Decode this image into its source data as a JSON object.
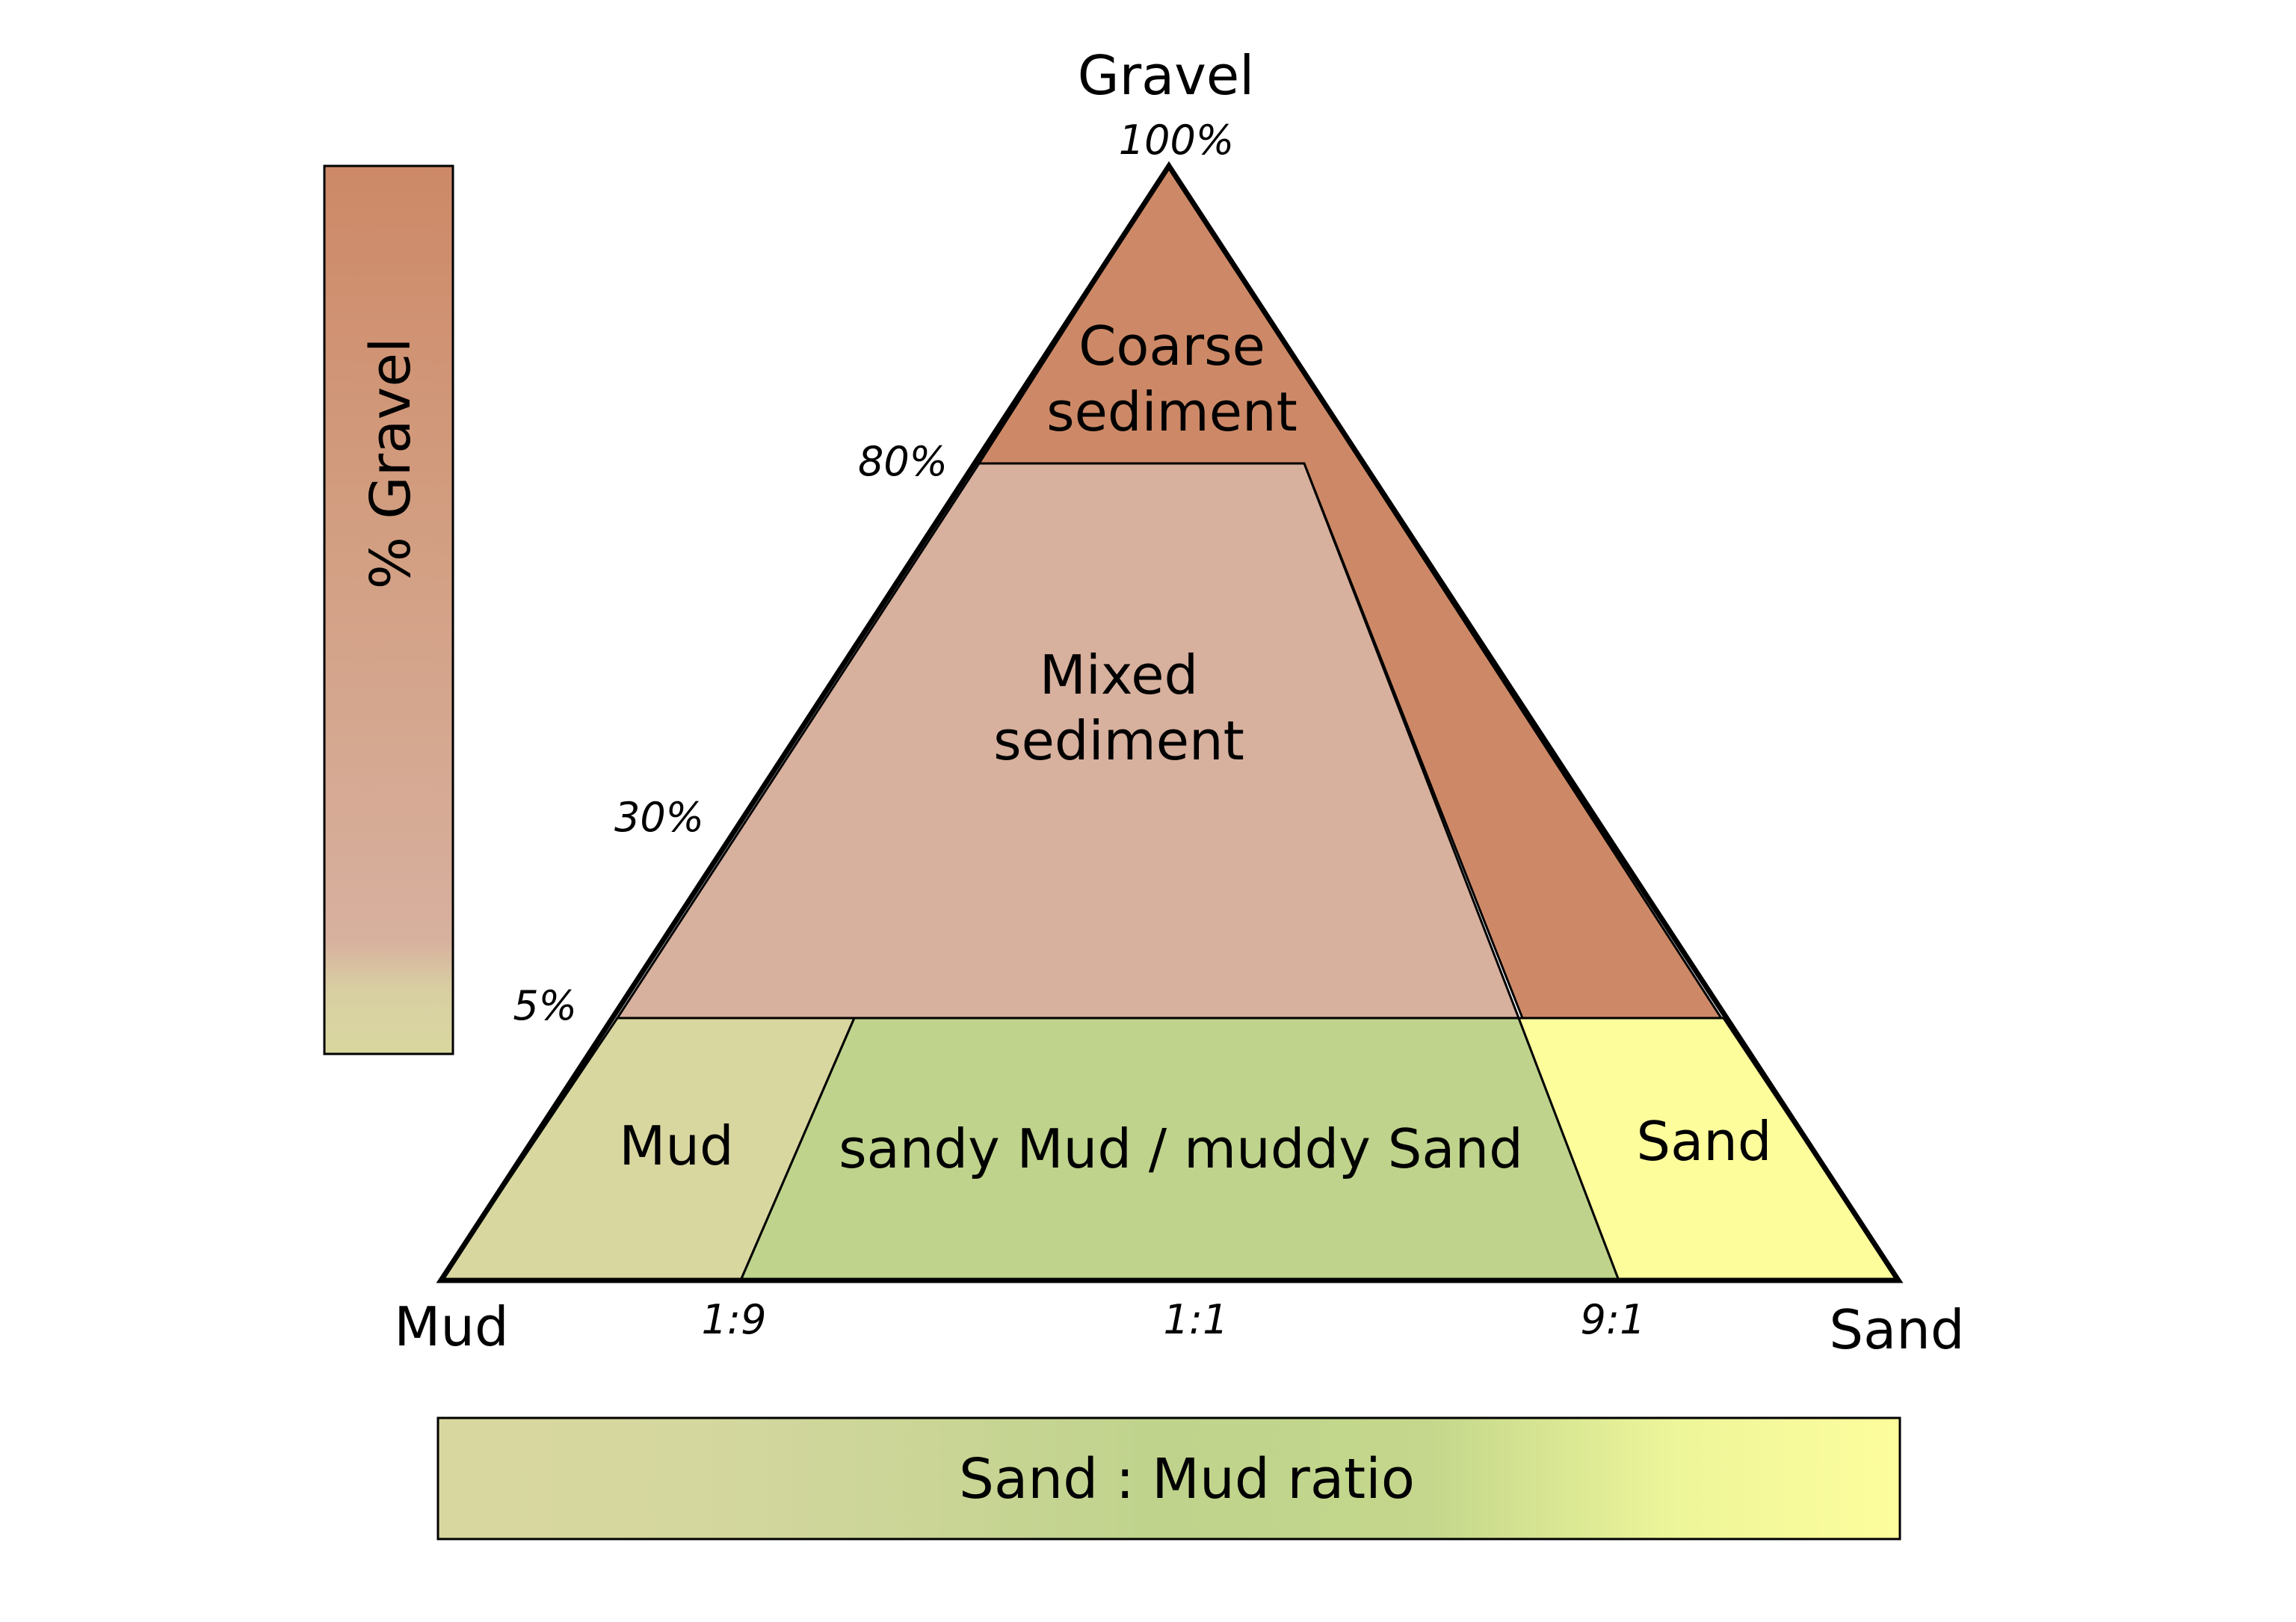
{
  "vertices": {
    "top": "Gravel",
    "left": "Mud",
    "right": "Sand"
  },
  "gravel_axis": {
    "ticks": [
      "100%",
      "80%",
      "30%",
      "5%"
    ],
    "bar_label": "% Gravel"
  },
  "ratio_axis": {
    "ticks": [
      "1:9",
      "1:1",
      "9:1"
    ],
    "bar_label": "Sand : Mud ratio"
  },
  "regions": {
    "coarse_line1": "Coarse",
    "coarse_line2": "sediment",
    "mixed_line1": "Mixed",
    "mixed_line2": "sediment",
    "mud": "Mud",
    "sandy_mud": "sandy Mud / muddy Sand",
    "sand": "Sand"
  },
  "colors": {
    "coarse": "#cd8967",
    "mixed": "#d7b09e",
    "mud": "#d9d7a0",
    "sandy_mud": "#bfd38c",
    "sand": "#fdfd9c",
    "outline": "#000000"
  }
}
